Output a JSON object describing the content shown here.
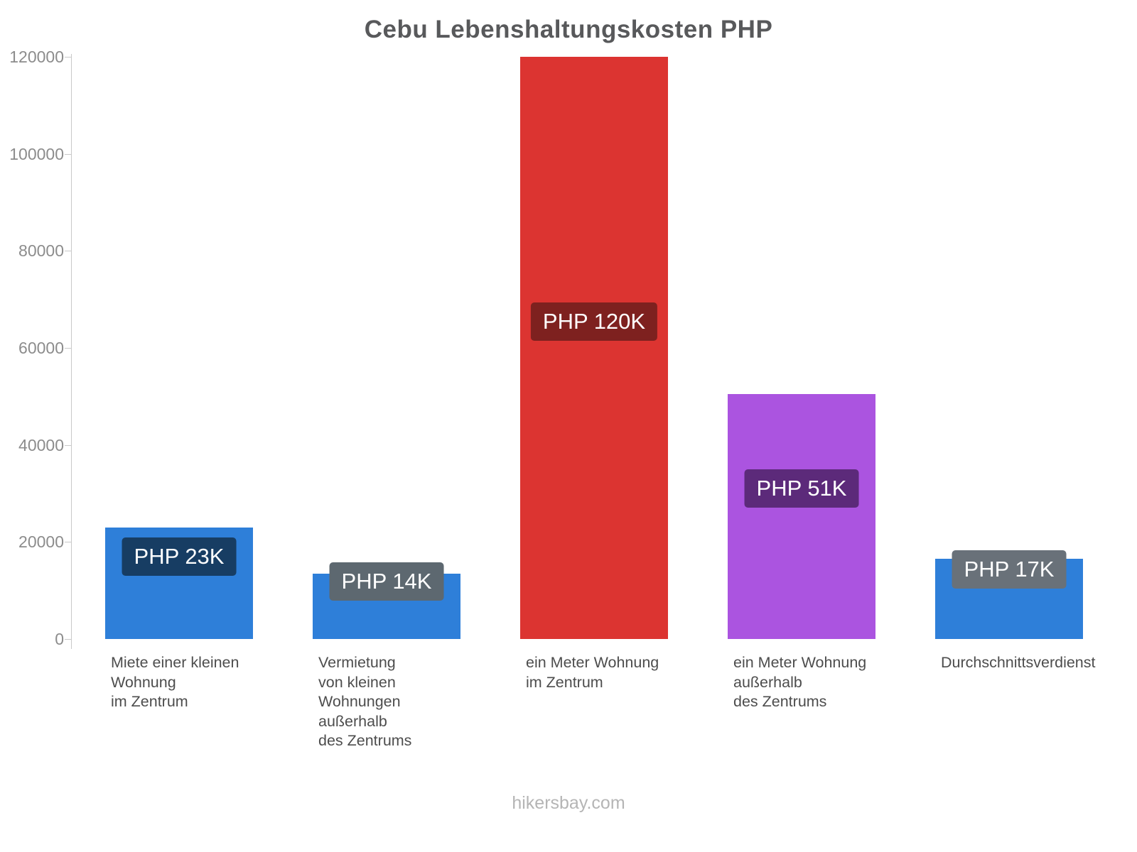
{
  "chart_data": {
    "type": "bar",
    "title": "Cebu Lebenshaltungskosten PHP",
    "xlabel": "",
    "ylabel": "",
    "ylim": [
      0,
      120000
    ],
    "yticks": [
      0,
      20000,
      40000,
      60000,
      80000,
      100000,
      120000
    ],
    "grid": false,
    "legend": false,
    "categories": [
      "Miete einer kleinen\nWohnung\nim Zentrum",
      "Vermietung\nvon kleinen\nWohnungen\naußerhalb\ndes Zentrums",
      "ein Meter Wohnung\nim Zentrum",
      "ein Meter Wohnung\naußerhalb\ndes Zentrums",
      "Durchschnittsverdienst"
    ],
    "values": [
      23000,
      13500,
      120000,
      50500,
      16500
    ],
    "value_labels": [
      "PHP 23K",
      "PHP 14K",
      "PHP 120K",
      "PHP 51K",
      "PHP 17K"
    ],
    "bar_colors": [
      "#2e7fd9",
      "#2e7fd9",
      "#dc3431",
      "#ab54e0",
      "#2e7fd9"
    ],
    "badge_colors": [
      "#173d63",
      "#5d6870",
      "#7e211f",
      "#5c2a7a",
      "#697179"
    ],
    "currency": "PHP",
    "city": "Cebu"
  },
  "footer": {
    "text": "hikersbay.com"
  }
}
